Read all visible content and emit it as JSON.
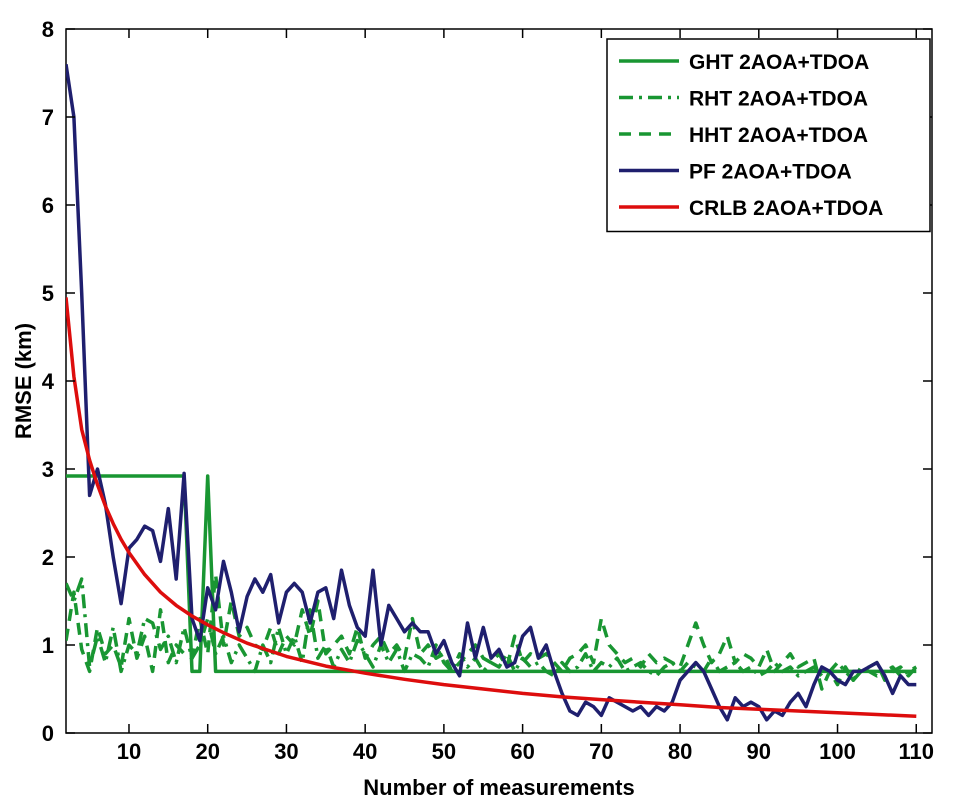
{
  "chart_data": {
    "type": "line",
    "title": "",
    "xlabel": "Number of measurements",
    "ylabel": "RMSE (km)",
    "xlim": [
      2,
      112
    ],
    "ylim": [
      0,
      8
    ],
    "xticks": [
      10,
      20,
      30,
      40,
      50,
      60,
      70,
      80,
      90,
      100,
      110
    ],
    "yticks": [
      0,
      1,
      2,
      3,
      4,
      5,
      6,
      7,
      8
    ],
    "grid": false,
    "legend": "top-right",
    "series": [
      {
        "name": "GHT 2AOA+TDOA",
        "color": "#199632",
        "style": "solid",
        "x": [
          2,
          17,
          18,
          19,
          20,
          21,
          110
        ],
        "y": [
          2.92,
          2.92,
          0.7,
          0.7,
          2.92,
          0.7,
          0.7
        ]
      },
      {
        "name": "RHT 2AOA+TDOA",
        "color": "#199632",
        "style": "dashdot",
        "x": [
          2,
          3,
          4,
          5,
          6,
          7,
          8,
          9,
          10,
          11,
          12,
          13,
          14,
          15,
          16,
          17,
          18,
          19,
          20,
          21,
          22,
          23,
          24,
          25,
          26,
          27,
          28,
          29,
          30,
          31,
          32,
          33,
          34,
          35,
          36,
          37,
          38,
          39,
          40,
          41,
          42,
          43,
          44,
          45,
          46,
          47,
          48,
          49,
          50,
          51,
          52,
          53,
          54,
          55,
          56,
          57,
          58,
          59,
          60,
          61,
          62,
          63,
          64,
          65,
          66,
          67,
          68,
          69,
          70,
          71,
          72,
          73,
          74,
          75,
          76,
          77,
          78,
          79,
          80,
          81,
          82,
          83,
          84,
          85,
          86,
          87,
          88,
          89,
          90,
          91,
          92,
          93,
          94,
          95,
          96,
          97,
          98,
          99,
          100,
          101,
          102,
          103,
          104,
          105,
          106,
          107,
          108,
          109,
          110
        ],
        "y": [
          1.7,
          1.5,
          1.75,
          0.75,
          1.1,
          0.8,
          1.2,
          0.7,
          1.0,
          0.9,
          1.3,
          1.25,
          0.95,
          1.1,
          0.8,
          1.2,
          0.85,
          1.0,
          1.3,
          0.9,
          1.1,
          0.8,
          1.0,
          0.85,
          0.7,
          1.0,
          0.8,
          1.2,
          0.9,
          1.1,
          0.8,
          1.4,
          0.85,
          1.0,
          0.75,
          0.95,
          0.8,
          1.05,
          0.9,
          0.75,
          1.0,
          0.8,
          0.95,
          0.7,
          0.9,
          0.85,
          0.75,
          1.0,
          0.8,
          0.7,
          0.9,
          0.75,
          0.85,
          0.7,
          0.8,
          0.75,
          0.9,
          0.7,
          0.85,
          0.75,
          0.8,
          0.7,
          0.65,
          0.8,
          0.7,
          0.75,
          0.9,
          0.7,
          0.8,
          0.75,
          0.85,
          0.7,
          0.75,
          0.8,
          0.7,
          0.65,
          0.75,
          0.8,
          0.7,
          0.8,
          0.75,
          0.7,
          0.85,
          0.7,
          0.75,
          0.8,
          0.7,
          0.75,
          0.65,
          0.7,
          0.8,
          0.7,
          0.75,
          0.65,
          0.7,
          0.75,
          0.65,
          0.7,
          0.8,
          0.7,
          0.6,
          0.75,
          0.7,
          0.65,
          0.7,
          0.75,
          0.65,
          0.7,
          0.75
        ]
      },
      {
        "name": "HHT 2AOA+TDOA",
        "color": "#199632",
        "style": "dashed",
        "x": [
          2,
          3,
          4,
          5,
          6,
          7,
          8,
          9,
          10,
          11,
          12,
          13,
          14,
          15,
          16,
          17,
          18,
          19,
          20,
          21,
          22,
          23,
          24,
          25,
          26,
          27,
          28,
          29,
          30,
          31,
          32,
          33,
          34,
          35,
          36,
          37,
          38,
          39,
          40,
          41,
          42,
          43,
          44,
          45,
          46,
          47,
          48,
          49,
          50,
          51,
          52,
          53,
          54,
          55,
          56,
          57,
          58,
          59,
          60,
          61,
          62,
          63,
          64,
          65,
          66,
          67,
          68,
          69,
          70,
          71,
          72,
          73,
          74,
          75,
          76,
          77,
          78,
          79,
          80,
          81,
          82,
          83,
          84,
          85,
          86,
          87,
          88,
          89,
          90,
          91,
          92,
          93,
          94,
          95,
          96,
          97,
          98,
          99,
          100,
          101,
          102,
          103,
          104,
          105,
          106,
          107,
          108,
          109,
          110
        ],
        "y": [
          1.05,
          1.6,
          0.95,
          0.7,
          1.2,
          0.9,
          1.0,
          0.75,
          1.3,
          0.85,
          1.1,
          0.7,
          1.4,
          0.8,
          1.0,
          0.9,
          0.85,
          1.3,
          0.9,
          1.8,
          1.0,
          1.5,
          1.1,
          1.2,
          1.0,
          0.95,
          1.2,
          0.9,
          1.1,
          1.0,
          1.4,
          1.1,
          1.5,
          0.9,
          1.0,
          1.1,
          0.9,
          1.2,
          0.85,
          1.0,
          1.1,
          0.9,
          1.0,
          0.85,
          1.3,
          0.9,
          1.0,
          0.85,
          0.9,
          0.7,
          0.8,
          0.9,
          1.0,
          0.85,
          0.8,
          0.9,
          0.75,
          1.1,
          0.8,
          0.9,
          0.85,
          0.9,
          0.8,
          0.7,
          0.85,
          0.9,
          1.0,
          0.8,
          1.3,
          1.0,
          0.9,
          0.8,
          0.85,
          0.75,
          0.9,
          0.8,
          0.85,
          0.8,
          0.75,
          1.0,
          1.25,
          1.0,
          0.8,
          0.9,
          1.1,
          0.8,
          0.9,
          0.85,
          0.75,
          0.95,
          0.7,
          0.8,
          0.9,
          0.75,
          0.8,
          0.85,
          0.5,
          0.7,
          0.55,
          0.75,
          0.6,
          0.7,
          0.75,
          0.8,
          0.6,
          0.7,
          0.75,
          0.65,
          0.75
        ]
      },
      {
        "name": "PF 2AOA+TDOA",
        "color": "#1f1f6e",
        "style": "solid",
        "x": [
          2,
          3,
          4,
          5,
          6,
          7,
          8,
          9,
          10,
          11,
          12,
          13,
          14,
          15,
          16,
          17,
          18,
          19,
          20,
          21,
          22,
          23,
          24,
          25,
          26,
          27,
          28,
          29,
          30,
          31,
          32,
          33,
          34,
          35,
          36,
          37,
          38,
          39,
          40,
          41,
          42,
          43,
          44,
          45,
          46,
          47,
          48,
          49,
          50,
          51,
          52,
          53,
          54,
          55,
          56,
          57,
          58,
          59,
          60,
          61,
          62,
          63,
          64,
          65,
          66,
          67,
          68,
          69,
          70,
          71,
          72,
          73,
          74,
          75,
          76,
          77,
          78,
          79,
          80,
          81,
          82,
          83,
          84,
          85,
          86,
          87,
          88,
          89,
          90,
          91,
          92,
          93,
          94,
          95,
          96,
          97,
          98,
          99,
          100,
          101,
          102,
          103,
          104,
          105,
          106,
          107,
          108,
          109,
          110
        ],
        "y": [
          7.6,
          7.0,
          5.0,
          2.7,
          3.0,
          2.6,
          2.0,
          1.47,
          2.1,
          2.2,
          2.35,
          2.3,
          1.95,
          2.55,
          1.75,
          2.95,
          1.3,
          1.05,
          1.65,
          1.4,
          1.95,
          1.6,
          1.15,
          1.55,
          1.75,
          1.6,
          1.8,
          1.25,
          1.6,
          1.7,
          1.6,
          1.25,
          1.6,
          1.65,
          1.3,
          1.85,
          1.45,
          1.2,
          1.1,
          1.85,
          1.0,
          1.45,
          1.3,
          1.15,
          1.25,
          1.15,
          1.15,
          0.9,
          1.05,
          0.8,
          0.65,
          1.25,
          0.85,
          1.2,
          0.85,
          0.95,
          0.75,
          0.8,
          1.1,
          1.2,
          0.85,
          1.0,
          0.7,
          0.45,
          0.25,
          0.2,
          0.35,
          0.3,
          0.2,
          0.4,
          0.35,
          0.3,
          0.25,
          0.3,
          0.2,
          0.3,
          0.25,
          0.35,
          0.6,
          0.7,
          0.8,
          0.7,
          0.5,
          0.3,
          0.15,
          0.4,
          0.3,
          0.35,
          0.3,
          0.15,
          0.25,
          0.2,
          0.35,
          0.45,
          0.3,
          0.55,
          0.75,
          0.7,
          0.6,
          0.55,
          0.7,
          0.7,
          0.75,
          0.8,
          0.65,
          0.45,
          0.65,
          0.55,
          0.55
        ]
      },
      {
        "name": "CRLB 2AOA+TDOA",
        "color": "#dd0d0d",
        "style": "solid",
        "x": [
          2,
          3,
          4,
          5,
          6,
          7,
          8,
          9,
          10,
          12,
          14,
          16,
          18,
          20,
          22,
          25,
          30,
          35,
          40,
          45,
          50,
          55,
          60,
          65,
          70,
          75,
          80,
          85,
          90,
          95,
          100,
          105,
          110
        ],
        "y": [
          4.95,
          4.05,
          3.45,
          3.1,
          2.82,
          2.58,
          2.38,
          2.2,
          2.05,
          1.8,
          1.6,
          1.45,
          1.33,
          1.23,
          1.14,
          1.02,
          0.87,
          0.76,
          0.68,
          0.61,
          0.55,
          0.5,
          0.45,
          0.41,
          0.38,
          0.35,
          0.32,
          0.29,
          0.27,
          0.25,
          0.23,
          0.21,
          0.19
        ]
      }
    ]
  }
}
